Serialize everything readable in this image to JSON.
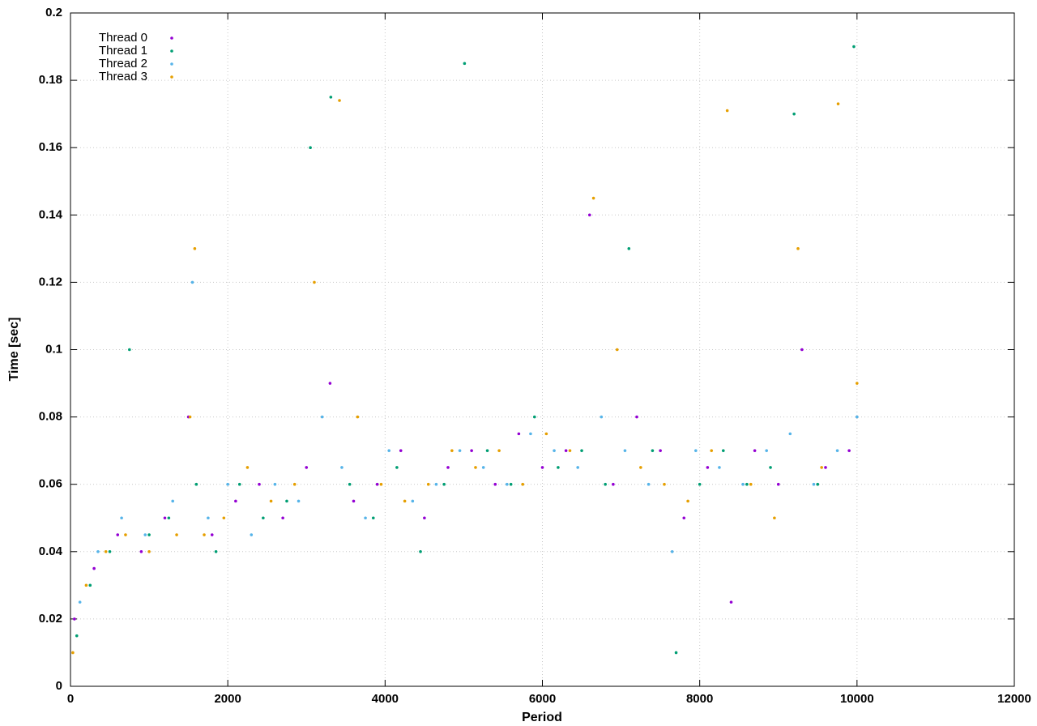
{
  "chart_data": {
    "type": "scatter",
    "x_label": "Period",
    "y_label": "Time [sec]",
    "xlim": [
      0,
      12000
    ],
    "xticks": [
      0,
      2000,
      4000,
      6000,
      8000,
      10000,
      12000
    ],
    "ylim": [
      0,
      0.2
    ],
    "yticks": [
      0,
      0.02,
      0.04,
      0.06,
      0.08,
      0.1,
      0.12,
      0.14,
      0.16,
      0.18,
      0.2
    ],
    "grid": true,
    "legend_position": "upper left",
    "series": [
      {
        "name": "Thread 0",
        "color": "#9400d3",
        "x": [
          50,
          300,
          600,
          900,
          1200,
          1500,
          1800,
          2100,
          2400,
          2700,
          3000,
          3300,
          3600,
          3900,
          4200,
          4500,
          4800,
          5100,
          5400,
          5700,
          6000,
          6300,
          6600,
          6900,
          7200,
          7500,
          7800,
          8100,
          8400,
          8700,
          9000,
          9300,
          9600,
          9900
        ],
        "values": [
          0.02,
          0.035,
          0.045,
          0.04,
          0.05,
          0.08,
          0.045,
          0.055,
          0.06,
          0.05,
          0.065,
          0.09,
          0.055,
          0.06,
          0.07,
          0.05,
          0.065,
          0.07,
          0.06,
          0.075,
          0.065,
          0.07,
          0.14,
          0.06,
          0.08,
          0.07,
          0.05,
          0.065,
          0.025,
          0.07,
          0.06,
          0.1,
          0.065,
          0.07
        ]
      },
      {
        "name": "Thread 1",
        "color": "#009e73",
        "x": [
          80,
          250,
          500,
          750,
          1000,
          1250,
          1600,
          1850,
          2150,
          2450,
          2750,
          3050,
          3310,
          3550,
          3850,
          4150,
          4450,
          4750,
          5010,
          5300,
          5600,
          5900,
          6200,
          6500,
          6800,
          7100,
          7400,
          7700,
          8000,
          8300,
          8600,
          8900,
          9200,
          9500,
          9960
        ],
        "values": [
          0.015,
          0.03,
          0.04,
          0.1,
          0.045,
          0.05,
          0.06,
          0.04,
          0.06,
          0.05,
          0.055,
          0.16,
          0.175,
          0.06,
          0.05,
          0.065,
          0.04,
          0.06,
          0.185,
          0.07,
          0.06,
          0.08,
          0.065,
          0.07,
          0.06,
          0.13,
          0.07,
          0.01,
          0.06,
          0.07,
          0.06,
          0.065,
          0.17,
          0.06,
          0.19
        ]
      },
      {
        "name": "Thread 2",
        "color": "#56b4e9",
        "x": [
          120,
          350,
          650,
          950,
          1300,
          1550,
          1750,
          2000,
          2300,
          2600,
          2900,
          3200,
          3450,
          3750,
          4050,
          4350,
          4650,
          4950,
          5250,
          5550,
          5850,
          6150,
          6450,
          6750,
          7050,
          7350,
          7650,
          7950,
          8250,
          8550,
          8850,
          9150,
          9450,
          9750,
          10000
        ],
        "values": [
          0.025,
          0.04,
          0.05,
          0.045,
          0.055,
          0.12,
          0.05,
          0.06,
          0.045,
          0.06,
          0.055,
          0.08,
          0.065,
          0.05,
          0.07,
          0.055,
          0.06,
          0.07,
          0.065,
          0.06,
          0.075,
          0.07,
          0.065,
          0.08,
          0.07,
          0.06,
          0.04,
          0.07,
          0.065,
          0.06,
          0.07,
          0.075,
          0.06,
          0.07,
          0.08
        ]
      },
      {
        "name": "Thread 3",
        "color": "#e69f00",
        "x": [
          30,
          200,
          450,
          700,
          1000,
          1350,
          1520,
          1580,
          1700,
          1950,
          2250,
          2550,
          2850,
          3100,
          3420,
          3650,
          3950,
          4250,
          4550,
          4850,
          5150,
          5450,
          5750,
          6050,
          6350,
          6650,
          6950,
          7250,
          7550,
          7850,
          8150,
          8350,
          8650,
          8950,
          9250,
          9550,
          9760,
          10000
        ],
        "values": [
          0.01,
          0.03,
          0.04,
          0.045,
          0.04,
          0.045,
          0.08,
          0.13,
          0.045,
          0.05,
          0.065,
          0.055,
          0.06,
          0.12,
          0.174,
          0.08,
          0.06,
          0.055,
          0.06,
          0.07,
          0.065,
          0.07,
          0.06,
          0.075,
          0.07,
          0.145,
          0.1,
          0.065,
          0.06,
          0.055,
          0.07,
          0.171,
          0.06,
          0.05,
          0.13,
          0.065,
          0.173,
          0.09
        ]
      }
    ]
  }
}
